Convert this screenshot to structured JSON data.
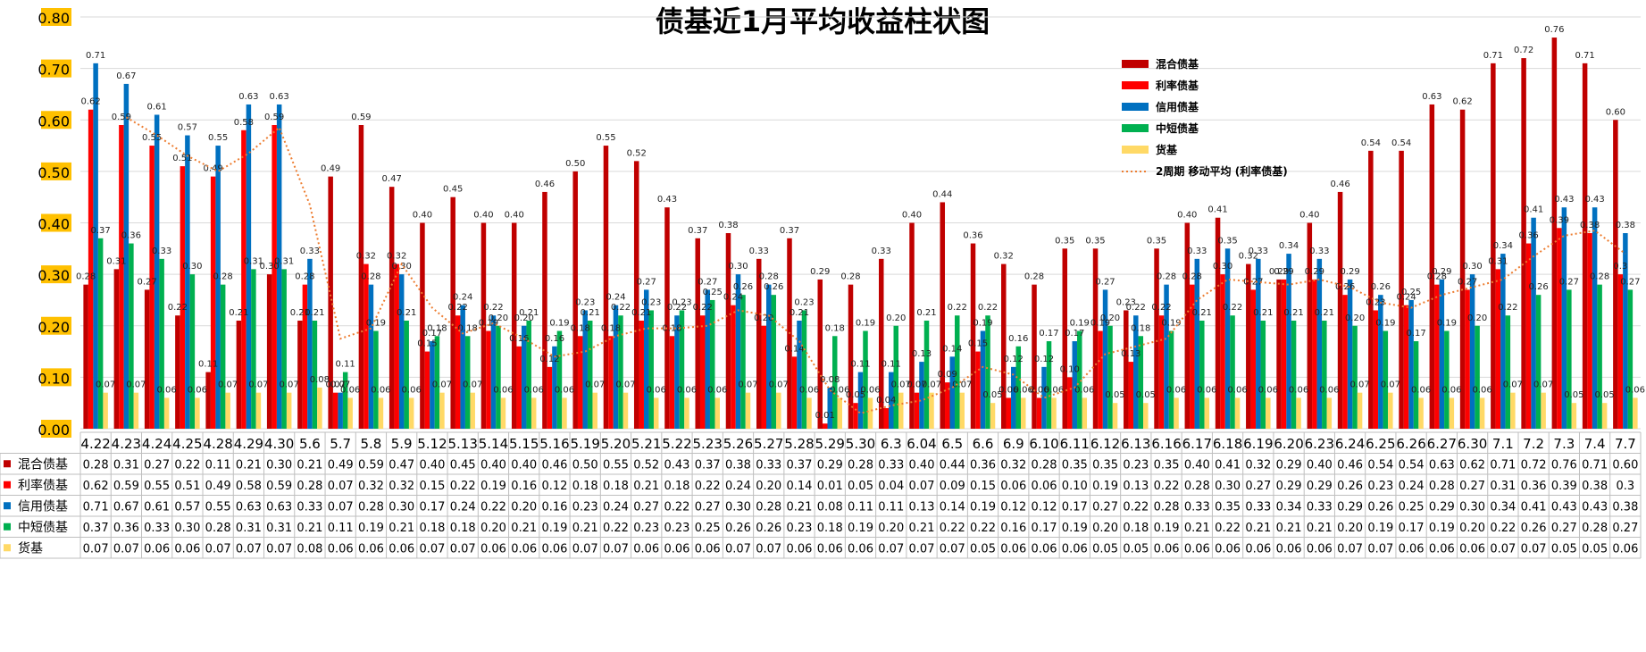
{
  "chart_data": {
    "type": "bar",
    "title": "债基近1月平均收益柱状图",
    "ylim": [
      0,
      0.8
    ],
    "yticks": [
      "0.00",
      "0.10",
      "0.20",
      "0.30",
      "0.40",
      "0.50",
      "0.60",
      "0.70",
      "0.80"
    ],
    "grid": true,
    "legend_position": "top-right",
    "categories": [
      "4.22",
      "4.23",
      "4.24",
      "4.25",
      "4.28",
      "4.29",
      "4.30",
      "5.6",
      "5.7",
      "5.8",
      "5.9",
      "5.12",
      "5.13",
      "5.14",
      "5.15",
      "5.16",
      "5.19",
      "5.20",
      "5.21",
      "5.22",
      "5.23",
      "5.26",
      "5.27",
      "5.28",
      "5.29",
      "5.30",
      "6.3",
      "6.04",
      "6.5",
      "6.6",
      "6.9",
      "6.10",
      "6.11",
      "6.12",
      "6.13",
      "6.16",
      "6.17",
      "6.18",
      "6.19",
      "6.20",
      "6.23",
      "6.24",
      "6.25",
      "6.26",
      "6.27",
      "6.30",
      "7.1",
      "7.2",
      "7.3",
      "7.4",
      "7.7"
    ],
    "series": [
      {
        "name": "混合债基",
        "color": "#C00000",
        "values": [
          0.28,
          0.31,
          0.27,
          0.22,
          0.11,
          0.21,
          0.3,
          0.21,
          0.49,
          0.59,
          0.47,
          0.4,
          0.45,
          0.4,
          0.4,
          0.46,
          0.5,
          0.55,
          0.52,
          0.43,
          0.37,
          0.38,
          0.33,
          0.37,
          0.29,
          0.28,
          0.33,
          0.4,
          0.44,
          0.36,
          0.32,
          0.28,
          0.35,
          0.35,
          0.23,
          0.35,
          0.4,
          0.41,
          0.32,
          0.29,
          0.4,
          0.46,
          0.54,
          0.54,
          0.63,
          0.62,
          0.71,
          0.72,
          0.76,
          0.71,
          0.6
        ],
        "labels": [
          "0.28",
          "0.31",
          "0.27",
          "0.22",
          "0.11",
          "0.21",
          "0.30",
          "0.21",
          "0.49",
          "0.59",
          "0.47",
          "0.40",
          "0.45",
          "0.40",
          "0.40",
          "0.46",
          "0.50",
          "0.55",
          "0.52",
          "0.43",
          "0.37",
          "0.38",
          "0.33",
          "0.37",
          "0.29",
          "0.28",
          "0.33",
          "0.40",
          "0.44",
          "0.36",
          "0.32",
          "0.28",
          "0.35",
          "0.35",
          "0.23",
          "0.35",
          "0.40",
          "0.41",
          "0.32",
          "0.29",
          "0.40",
          "0.46",
          "0.54",
          "0.54",
          "0.63",
          "0.62",
          "0.71",
          "0.72",
          "0.76",
          "0.71",
          "0.60"
        ]
      },
      {
        "name": "利率债基",
        "color": "#FF0000",
        "values": [
          0.62,
          0.59,
          0.55,
          0.51,
          0.49,
          0.58,
          0.59,
          0.28,
          0.07,
          0.32,
          0.32,
          0.15,
          0.22,
          0.19,
          0.16,
          0.12,
          0.18,
          0.18,
          0.21,
          0.18,
          0.22,
          0.24,
          0.2,
          0.14,
          0.01,
          0.05,
          0.04,
          0.07,
          0.09,
          0.15,
          0.06,
          0.06,
          0.1,
          0.19,
          0.13,
          0.22,
          0.28,
          0.3,
          0.27,
          0.29,
          0.29,
          0.26,
          0.23,
          0.24,
          0.28,
          0.27,
          0.31,
          0.36,
          0.39,
          0.38,
          0.3
        ],
        "labels": [
          "0.62",
          "0.59",
          "0.55",
          "0.51",
          "0.49",
          "0.58",
          "0.59",
          "0.28",
          "0.07",
          "0.32",
          "0.32",
          "0.15",
          "0.22",
          "0.19",
          "0.16",
          "0.12",
          "0.18",
          "0.18",
          "0.21",
          "0.18",
          "0.22",
          "0.24",
          "0.20",
          "0.14",
          "0.01",
          "0.05",
          "0.04",
          "0.07",
          "0.09",
          "0.15",
          "0.06",
          "0.06",
          "0.10",
          "0.19",
          "0.13",
          "0.22",
          "0.28",
          "0.30",
          "0.27",
          "0.29",
          "0.29",
          "0.26",
          "0.23",
          "0.24",
          "0.28",
          "0.27",
          "0.31",
          "0.36",
          "0.39",
          "0.38",
          "0.3"
        ]
      },
      {
        "name": "信用债基",
        "color": "#0070C0",
        "values": [
          0.71,
          0.67,
          0.61,
          0.57,
          0.55,
          0.63,
          0.63,
          0.33,
          0.07,
          0.28,
          0.3,
          0.17,
          0.24,
          0.22,
          0.2,
          0.16,
          0.23,
          0.24,
          0.27,
          0.22,
          0.27,
          0.3,
          0.28,
          0.21,
          0.08,
          0.11,
          0.11,
          0.13,
          0.14,
          0.19,
          0.12,
          0.12,
          0.17,
          0.27,
          0.22,
          0.28,
          0.33,
          0.35,
          0.33,
          0.34,
          0.33,
          0.29,
          0.26,
          0.25,
          0.29,
          0.3,
          0.34,
          0.41,
          0.43,
          0.43,
          0.38
        ],
        "labels": [
          "0.71",
          "0.67",
          "0.61",
          "0.57",
          "0.55",
          "0.63",
          "0.63",
          "0.33",
          "0.07",
          "0.28",
          "0.30",
          "0.17",
          "0.24",
          "0.22",
          "0.20",
          "0.16",
          "0.23",
          "0.24",
          "0.27",
          "0.22",
          "0.27",
          "0.30",
          "0.28",
          "0.21",
          "0.08",
          "0.11",
          "0.11",
          "0.13",
          "0.14",
          "0.19",
          "0.12",
          "0.12",
          "0.17",
          "0.27",
          "0.22",
          "0.28",
          "0.33",
          "0.35",
          "0.33",
          "0.34",
          "0.33",
          "0.29",
          "0.26",
          "0.25",
          "0.29",
          "0.30",
          "0.34",
          "0.41",
          "0.43",
          "0.43",
          "0.38"
        ]
      },
      {
        "name": "中短债基",
        "color": "#00B050",
        "values": [
          0.37,
          0.36,
          0.33,
          0.3,
          0.28,
          0.31,
          0.31,
          0.21,
          0.11,
          0.19,
          0.21,
          0.18,
          0.18,
          0.2,
          0.21,
          0.19,
          0.21,
          0.22,
          0.23,
          0.23,
          0.25,
          0.26,
          0.26,
          0.23,
          0.18,
          0.19,
          0.2,
          0.21,
          0.22,
          0.22,
          0.16,
          0.17,
          0.19,
          0.2,
          0.18,
          0.19,
          0.21,
          0.22,
          0.21,
          0.21,
          0.21,
          0.2,
          0.19,
          0.17,
          0.19,
          0.2,
          0.22,
          0.26,
          0.27,
          0.28,
          0.27
        ],
        "labels": [
          "0.37",
          "0.36",
          "0.33",
          "0.30",
          "0.28",
          "0.31",
          "0.31",
          "0.21",
          "0.11",
          "0.19",
          "0.21",
          "0.18",
          "0.18",
          "0.20",
          "0.21",
          "0.19",
          "0.21",
          "0.22",
          "0.23",
          "0.23",
          "0.25",
          "0.26",
          "0.26",
          "0.23",
          "0.18",
          "0.19",
          "0.20",
          "0.21",
          "0.22",
          "0.22",
          "0.16",
          "0.17",
          "0.19",
          "0.20",
          "0.18",
          "0.19",
          "0.21",
          "0.22",
          "0.21",
          "0.21",
          "0.21",
          "0.20",
          "0.19",
          "0.17",
          "0.19",
          "0.20",
          "0.22",
          "0.26",
          "0.27",
          "0.28",
          "0.27"
        ]
      },
      {
        "name": "货基",
        "color": "#FFD966",
        "values": [
          0.07,
          0.07,
          0.06,
          0.06,
          0.07,
          0.07,
          0.07,
          0.08,
          0.06,
          0.06,
          0.06,
          0.07,
          0.07,
          0.06,
          0.06,
          0.06,
          0.07,
          0.07,
          0.06,
          0.06,
          0.06,
          0.07,
          0.07,
          0.06,
          0.06,
          0.06,
          0.07,
          0.07,
          0.07,
          0.05,
          0.06,
          0.06,
          0.06,
          0.05,
          0.05,
          0.06,
          0.06,
          0.06,
          0.06,
          0.06,
          0.06,
          0.07,
          0.07,
          0.06,
          0.06,
          0.06,
          0.07,
          0.07,
          0.05,
          0.05,
          0.06
        ],
        "labels": [
          "0.07",
          "0.07",
          "0.06",
          "0.06",
          "0.07",
          "0.07",
          "0.07",
          "0.08",
          "0.06",
          "0.06",
          "0.06",
          "0.07",
          "0.07",
          "0.06",
          "0.06",
          "0.06",
          "0.07",
          "0.07",
          "0.06",
          "0.06",
          "0.06",
          "0.07",
          "0.07",
          "0.06",
          "0.06",
          "0.06",
          "0.07",
          "0.07",
          "0.07",
          "0.05",
          "0.06",
          "0.06",
          "0.06",
          "0.05",
          "0.05",
          "0.06",
          "0.06",
          "0.06",
          "0.06",
          "0.06",
          "0.06",
          "0.07",
          "0.07",
          "0.06",
          "0.06",
          "0.06",
          "0.07",
          "0.07",
          "0.05",
          "0.05",
          "0.06"
        ]
      }
    ],
    "trendline": {
      "name": "2周期 移动平均 (利率债基)",
      "color": "#ED7D31",
      "period": 2,
      "of_series": "利率债基"
    }
  }
}
